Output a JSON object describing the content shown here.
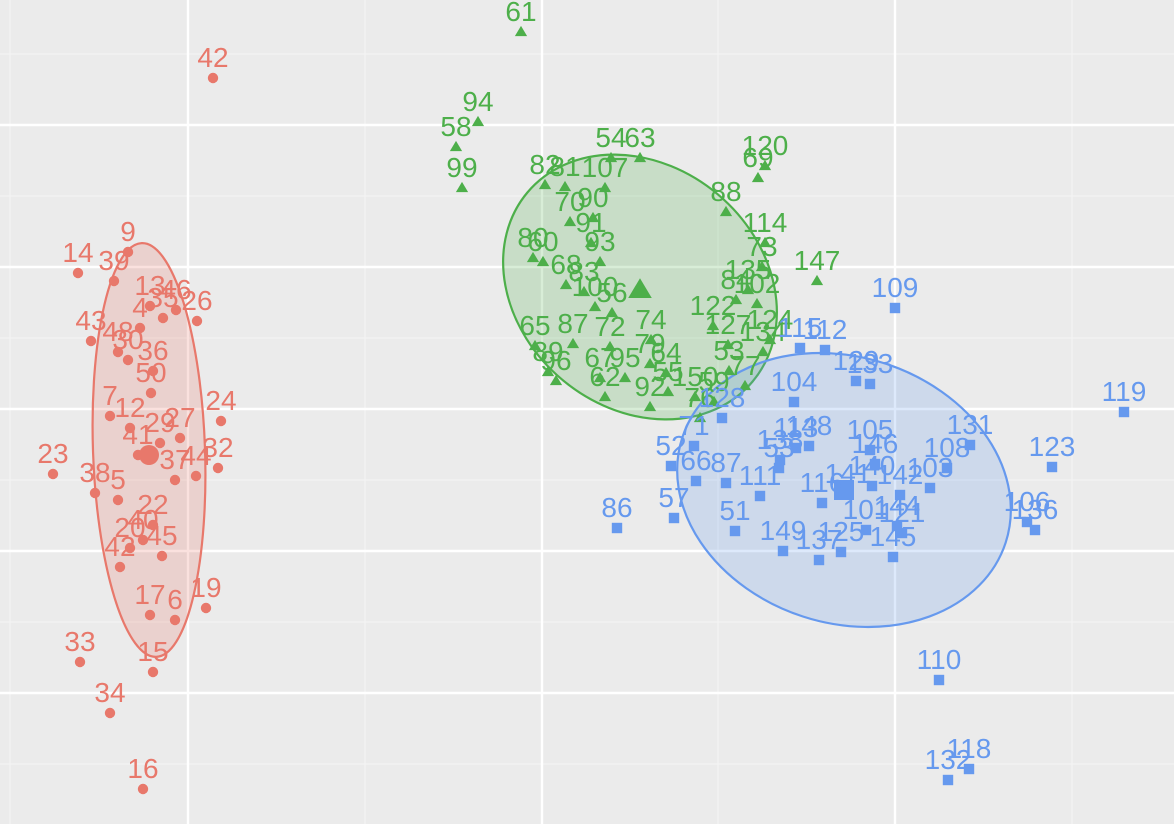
{
  "chart_data": {
    "type": "scatter",
    "title": "",
    "xlabel": "",
    "ylabel": "",
    "grid": true,
    "legend": "none",
    "xlim": [
      0,
      1174
    ],
    "ylim": [
      -824,
      0
    ],
    "x_major_ticks": [
      188,
      542,
      895
    ],
    "x_minor_ticks": [
      10,
      365,
      718,
      1072
    ],
    "y_major_ticks": [
      -125,
      -267,
      -409,
      -551,
      -693
    ],
    "y_minor_ticks": [
      -54,
      -196,
      -338,
      -480,
      -622,
      -764
    ],
    "series": [
      {
        "shape": "circle",
        "color": "#e8786b",
        "ellipse": {
          "cx": 149,
          "cy": -450,
          "rx": 207,
          "ry": 56,
          "angle": 88
        },
        "points": [
          {
            "label": "42",
            "x": 213,
            "y": -78
          },
          {
            "label": "9",
            "x": 128,
            "y": -252
          },
          {
            "label": "14",
            "x": 78,
            "y": -273
          },
          {
            "label": "39",
            "x": 114,
            "y": -281
          },
          {
            "label": "13",
            "x": 150,
            "y": -306
          },
          {
            "label": "46",
            "x": 176,
            "y": -310
          },
          {
            "label": "26",
            "x": 197,
            "y": -321
          },
          {
            "label": "4",
            "x": 140,
            "y": -328
          },
          {
            "label": "35",
            "x": 163,
            "y": -318
          },
          {
            "label": "43",
            "x": 91,
            "y": -341
          },
          {
            "label": "48",
            "x": 118,
            "y": -352
          },
          {
            "label": "30",
            "x": 128,
            "y": -360
          },
          {
            "label": "36",
            "x": 153,
            "y": -371
          },
          {
            "label": "50",
            "x": 151,
            "y": -393
          },
          {
            "label": "7",
            "x": 110,
            "y": -416
          },
          {
            "label": "12",
            "x": 130,
            "y": -428
          },
          {
            "label": "24",
            "x": 221,
            "y": -421
          },
          {
            "label": "27",
            "x": 180,
            "y": -438
          },
          {
            "label": "29",
            "x": 160,
            "y": -443
          },
          {
            "label": "23",
            "x": 53,
            "y": -474
          },
          {
            "label": "41",
            "x": 138,
            "y": -455
          },
          {
            "label": "32",
            "x": 218,
            "y": -468
          },
          {
            "label": "44",
            "x": 196,
            "y": -476
          },
          {
            "label": "38",
            "x": 95,
            "y": -493
          },
          {
            "label": "5",
            "x": 118,
            "y": -500
          },
          {
            "label": "37",
            "x": 175,
            "y": -480
          },
          {
            "label": "22",
            "x": 153,
            "y": -525
          },
          {
            "label": "40",
            "x": 143,
            "y": -540
          },
          {
            "label": "42",
            "x": 120,
            "y": -567
          },
          {
            "label": "20",
            "x": 130,
            "y": -548
          },
          {
            "label": "45",
            "x": 162,
            "y": -556
          },
          {
            "label": "17",
            "x": 150,
            "y": -615
          },
          {
            "label": "6",
            "x": 175,
            "y": -620
          },
          {
            "label": "19",
            "x": 206,
            "y": -608
          },
          {
            "label": "33",
            "x": 80,
            "y": -662
          },
          {
            "label": "15",
            "x": 153,
            "y": -672
          },
          {
            "label": "34",
            "x": 110,
            "y": -713
          },
          {
            "label": "16",
            "x": 143,
            "y": -789
          }
        ]
      },
      {
        "shape": "triangle",
        "color": "#4daf4a",
        "ellipse": {
          "cx": 640,
          "cy": -287,
          "rx": 147,
          "ry": 121,
          "angle": 40
        },
        "points": [
          {
            "label": "61",
            "x": 521,
            "y": -32
          },
          {
            "label": "94",
            "x": 478,
            "y": -122
          },
          {
            "label": "58",
            "x": 456,
            "y": -147
          },
          {
            "label": "99",
            "x": 462,
            "y": -188
          },
          {
            "label": "54",
            "x": 611,
            "y": -158
          },
          {
            "label": "63",
            "x": 640,
            "y": -158
          },
          {
            "label": "82",
            "x": 545,
            "y": -185
          },
          {
            "label": "81",
            "x": 565,
            "y": -187
          },
          {
            "label": "107",
            "x": 605,
            "y": -188
          },
          {
            "label": "70",
            "x": 570,
            "y": -222
          },
          {
            "label": "90",
            "x": 593,
            "y": -218
          },
          {
            "label": "120",
            "x": 765,
            "y": -166
          },
          {
            "label": "69",
            "x": 758,
            "y": -178
          },
          {
            "label": "88",
            "x": 726,
            "y": -212
          },
          {
            "label": "114",
            "x": 765,
            "y": -243
          },
          {
            "label": "91",
            "x": 591,
            "y": -243
          },
          {
            "label": "80",
            "x": 533,
            "y": -258
          },
          {
            "label": "60",
            "x": 543,
            "y": -262
          },
          {
            "label": "93",
            "x": 600,
            "y": -262
          },
          {
            "label": "73",
            "x": 762,
            "y": -267
          },
          {
            "label": "147",
            "x": 817,
            "y": -281
          },
          {
            "label": "68",
            "x": 566,
            "y": -285
          },
          {
            "label": "83",
            "x": 584,
            "y": -292
          },
          {
            "label": "100",
            "x": 595,
            "y": -307
          },
          {
            "label": "56",
            "x": 612,
            "y": -313
          },
          {
            "label": "135",
            "x": 748,
            "y": -290
          },
          {
            "label": "84",
            "x": 736,
            "y": -300
          },
          {
            "label": "102",
            "x": 757,
            "y": -304
          },
          {
            "label": "122",
            "x": 713,
            "y": -326
          },
          {
            "label": "124",
            "x": 770,
            "y": -340
          },
          {
            "label": "65",
            "x": 535,
            "y": -346
          },
          {
            "label": "87",
            "x": 573,
            "y": -344
          },
          {
            "label": "72",
            "x": 610,
            "y": -347
          },
          {
            "label": "74",
            "x": 651,
            "y": -340
          },
          {
            "label": "127",
            "x": 728,
            "y": -345
          },
          {
            "label": "134",
            "x": 763,
            "y": -352
          },
          {
            "label": "89",
            "x": 548,
            "y": -372
          },
          {
            "label": "96",
            "x": 556,
            "y": -381
          },
          {
            "label": "67",
            "x": 600,
            "y": -378
          },
          {
            "label": "95",
            "x": 625,
            "y": -378
          },
          {
            "label": "79",
            "x": 650,
            "y": -364
          },
          {
            "label": "64",
            "x": 666,
            "y": -373
          },
          {
            "label": "53",
            "x": 729,
            "y": -371
          },
          {
            "label": "62",
            "x": 605,
            "y": -397
          },
          {
            "label": "92",
            "x": 650,
            "y": -407
          },
          {
            "label": "55",
            "x": 668,
            "y": -392
          },
          {
            "label": "150",
            "x": 695,
            "y": -397
          },
          {
            "label": "59",
            "x": 714,
            "y": -402
          },
          {
            "label": "77",
            "x": 745,
            "y": -386
          },
          {
            "label": "76",
            "x": 700,
            "y": -418
          }
        ]
      },
      {
        "shape": "square",
        "color": "#6699ee",
        "ellipse": {
          "cx": 844,
          "cy": -490,
          "rx": 170,
          "ry": 133,
          "angle": 18
        },
        "points": [
          {
            "label": "109",
            "x": 895,
            "y": -308
          },
          {
            "label": "119",
            "x": 1124,
            "y": -412
          },
          {
            "label": "115",
            "x": 800,
            "y": -348
          },
          {
            "label": "112",
            "x": 825,
            "y": -350
          },
          {
            "label": "129",
            "x": 856,
            "y": -381
          },
          {
            "label": "133",
            "x": 870,
            "y": -384
          },
          {
            "label": "104",
            "x": 794,
            "y": -402
          },
          {
            "label": "128",
            "x": 722,
            "y": -418
          },
          {
            "label": "148",
            "x": 809,
            "y": -446
          },
          {
            "label": "113",
            "x": 796,
            "y": -448
          },
          {
            "label": "105",
            "x": 870,
            "y": -450
          },
          {
            "label": "131",
            "x": 970,
            "y": -445
          },
          {
            "label": "108",
            "x": 947,
            "y": -468
          },
          {
            "label": "146",
            "x": 875,
            "y": -464
          },
          {
            "label": "123",
            "x": 1052,
            "y": -467
          },
          {
            "label": "71",
            "x": 694,
            "y": -446
          },
          {
            "label": "66",
            "x": 696,
            "y": -481
          },
          {
            "label": "138",
            "x": 780,
            "y": -460
          },
          {
            "label": "87",
            "x": 726,
            "y": -483
          },
          {
            "label": "52",
            "x": 671,
            "y": -466
          },
          {
            "label": "53",
            "x": 779,
            "y": -468
          },
          {
            "label": "103",
            "x": 930,
            "y": -488
          },
          {
            "label": "140",
            "x": 872,
            "y": -486
          },
          {
            "label": "111",
            "x": 760,
            "y": -496
          },
          {
            "label": "116",
            "x": 822,
            "y": -503
          },
          {
            "label": "141",
            "x": 848,
            "y": -494
          },
          {
            "label": "142",
            "x": 900,
            "y": -495
          },
          {
            "label": "57",
            "x": 674,
            "y": -518
          },
          {
            "label": "51",
            "x": 735,
            "y": -531
          },
          {
            "label": "106",
            "x": 1027,
            "y": -522
          },
          {
            "label": "136",
            "x": 1035,
            "y": -530
          },
          {
            "label": "101",
            "x": 866,
            "y": -530
          },
          {
            "label": "144",
            "x": 897,
            "y": -526
          },
          {
            "label": "121",
            "x": 902,
            "y": -533
          },
          {
            "label": "149",
            "x": 783,
            "y": -551
          },
          {
            "label": "137",
            "x": 819,
            "y": -560
          },
          {
            "label": "125",
            "x": 841,
            "y": -552
          },
          {
            "label": "145",
            "x": 893,
            "y": -557
          },
          {
            "label": "86",
            "x": 617,
            "y": -528
          },
          {
            "label": "110",
            "x": 939,
            "y": -680
          },
          {
            "label": "118",
            "x": 969,
            "y": -769
          },
          {
            "label": "132",
            "x": 948,
            "y": -780
          }
        ]
      }
    ],
    "centroids": [
      {
        "series": 0,
        "x": 149,
        "y": -455
      },
      {
        "series": 1,
        "x": 640,
        "y": -290
      },
      {
        "series": 2,
        "x": 844,
        "y": -490
      }
    ]
  }
}
